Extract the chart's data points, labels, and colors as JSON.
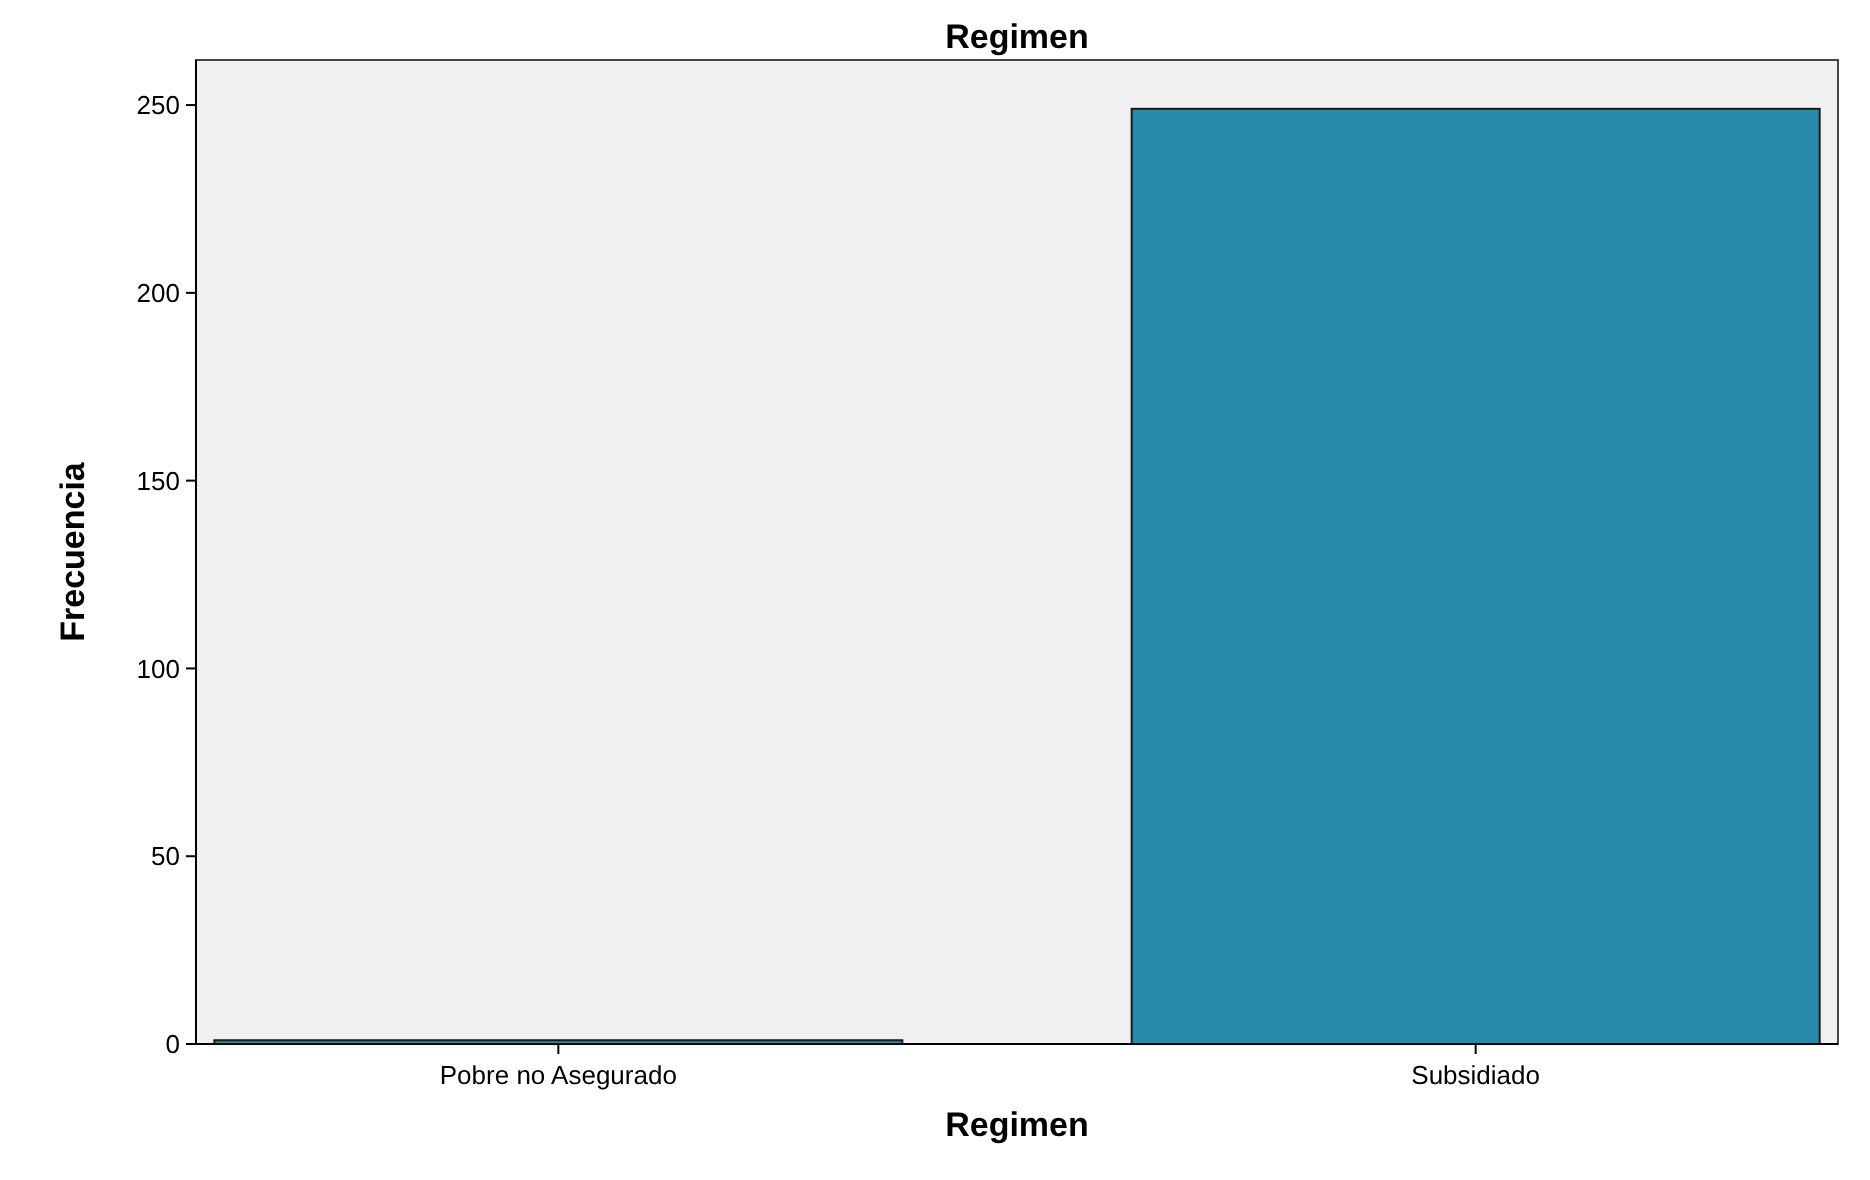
{
  "chart_data": {
    "type": "bar",
    "title": "Regimen",
    "xlabel": "Regimen",
    "ylabel": "Frecuencia",
    "categories": [
      "Pobre no Asegurado",
      "Subsidiado"
    ],
    "values": [
      1,
      249
    ],
    "color": "#2a8aab",
    "ylim": [
      0,
      262
    ],
    "yticks": [
      0,
      50,
      100,
      150,
      200,
      250
    ],
    "grid": false
  }
}
